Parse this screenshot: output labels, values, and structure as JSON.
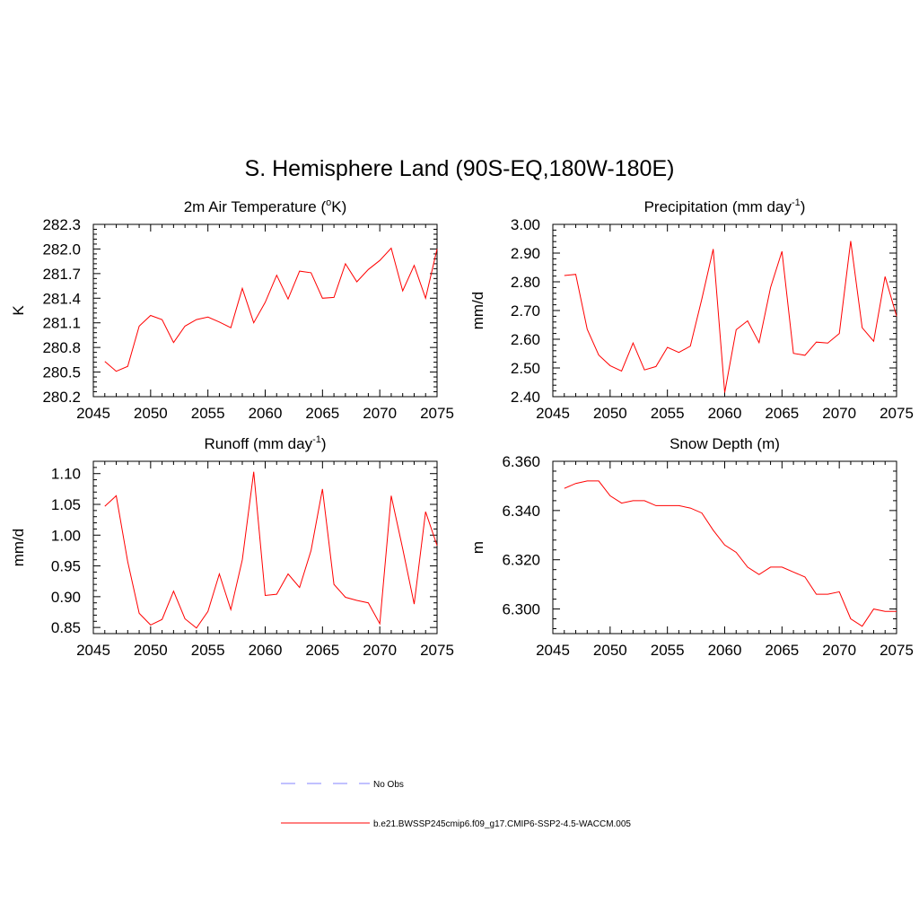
{
  "title": "S. Hemisphere Land (90S-EQ,180W-180E)",
  "line_color": "#ff0000",
  "obs_color": "#9c9cff",
  "legend": [
    {
      "label": "No Obs",
      "style": "dashed",
      "color": "#9c9cff"
    },
    {
      "label": "b.e21.BWSSP245cmip6.f09_g17.CMIP6-SSP2-4.5-WACCM.005",
      "style": "solid",
      "color": "#ff0000"
    }
  ],
  "chart_data": [
    {
      "type": "line",
      "title": "2m Air Temperature (",
      "title_sup": "o",
      "title_after": "K)",
      "ylabel": "K",
      "xlabel": "",
      "xlim": [
        2045,
        2075
      ],
      "ylim": [
        280.2,
        282.3
      ],
      "xticks": [
        "2045",
        "2050",
        "2055",
        "2060",
        "2065",
        "2070",
        "2075"
      ],
      "yticks": [
        "280.2",
        "280.5",
        "280.8",
        "281.1",
        "281.4",
        "281.7",
        "282.0",
        "282.3"
      ],
      "x": [
        2046,
        2047,
        2048,
        2049,
        2050,
        2051,
        2052,
        2053,
        2054,
        2055,
        2056,
        2057,
        2058,
        2059,
        2060,
        2061,
        2062,
        2063,
        2064,
        2065,
        2066,
        2067,
        2068,
        2069,
        2070,
        2071,
        2072,
        2073,
        2074,
        2075
      ],
      "values": [
        280.63,
        280.51,
        280.57,
        281.06,
        281.19,
        281.14,
        280.86,
        281.06,
        281.14,
        281.17,
        281.11,
        281.04,
        281.52,
        281.1,
        281.35,
        281.68,
        281.39,
        281.73,
        281.71,
        281.4,
        281.41,
        281.82,
        281.6,
        281.75,
        281.86,
        282.01,
        281.49,
        281.8,
        281.4,
        282.0
      ]
    },
    {
      "type": "line",
      "title": "Precipitation (mm day",
      "title_sup": "-1",
      "title_after": ")",
      "ylabel": "mm/d",
      "xlabel": "",
      "xlim": [
        2045,
        2075
      ],
      "ylim": [
        2.4,
        3.0
      ],
      "xticks": [
        "2045",
        "2050",
        "2055",
        "2060",
        "2065",
        "2070",
        "2075"
      ],
      "yticks": [
        "2.40",
        "2.50",
        "2.60",
        "2.70",
        "2.80",
        "2.90",
        "3.00"
      ],
      "x": [
        2046,
        2047,
        2048,
        2049,
        2050,
        2051,
        2052,
        2053,
        2054,
        2055,
        2056,
        2057,
        2058,
        2059,
        2060,
        2061,
        2062,
        2063,
        2064,
        2065,
        2066,
        2067,
        2068,
        2069,
        2070,
        2071,
        2072,
        2073,
        2074,
        2075
      ],
      "values": [
        2.822,
        2.826,
        2.635,
        2.545,
        2.508,
        2.489,
        2.587,
        2.493,
        2.505,
        2.572,
        2.554,
        2.576,
        2.74,
        2.914,
        2.414,
        2.633,
        2.664,
        2.588,
        2.78,
        2.906,
        2.551,
        2.544,
        2.59,
        2.587,
        2.62,
        2.942,
        2.64,
        2.593,
        2.818,
        2.68
      ]
    },
    {
      "type": "line",
      "title": "Runoff (mm day",
      "title_sup": "-1",
      "title_after": ")",
      "ylabel": "mm/d",
      "xlabel": "",
      "xlim": [
        2045,
        2075
      ],
      "ylim": [
        0.84,
        1.12
      ],
      "xticks": [
        "2045",
        "2050",
        "2055",
        "2060",
        "2065",
        "2070",
        "2075"
      ],
      "yticks": [
        "0.85",
        "0.90",
        "0.95",
        "1.00",
        "1.05",
        "1.10"
      ],
      "ytick_values": [
        0.85,
        0.9,
        0.95,
        1.0,
        1.05,
        1.1
      ],
      "x": [
        2046,
        2047,
        2048,
        2049,
        2050,
        2051,
        2052,
        2053,
        2054,
        2055,
        2056,
        2057,
        2058,
        2059,
        2060,
        2061,
        2062,
        2063,
        2064,
        2065,
        2066,
        2067,
        2068,
        2069,
        2070,
        2071,
        2072,
        2073,
        2074,
        2075
      ],
      "values": [
        1.047,
        1.064,
        0.957,
        0.873,
        0.854,
        0.863,
        0.909,
        0.864,
        0.849,
        0.876,
        0.937,
        0.879,
        0.96,
        1.103,
        0.902,
        0.904,
        0.937,
        0.915,
        0.975,
        1.075,
        0.92,
        0.899,
        0.894,
        0.89,
        0.856,
        1.064,
        0.978,
        0.888,
        1.038,
        0.983
      ]
    },
    {
      "type": "line",
      "title": "Snow Depth (m)",
      "title_sup": "",
      "title_after": "",
      "ylabel": "m",
      "xlabel": "",
      "xlim": [
        2045,
        2075
      ],
      "ylim": [
        6.29,
        6.36
      ],
      "xticks": [
        "2045",
        "2050",
        "2055",
        "2060",
        "2065",
        "2070",
        "2075"
      ],
      "yticks": [
        "6.300",
        "6.320",
        "6.340",
        "6.360"
      ],
      "ytick_values": [
        6.3,
        6.32,
        6.34,
        6.36
      ],
      "x": [
        2046,
        2047,
        2048,
        2049,
        2050,
        2051,
        2052,
        2053,
        2054,
        2055,
        2056,
        2057,
        2058,
        2059,
        2060,
        2061,
        2062,
        2063,
        2064,
        2065,
        2066,
        2067,
        2068,
        2069,
        2070,
        2071,
        2072,
        2073,
        2074,
        2075
      ],
      "values": [
        6.349,
        6.351,
        6.352,
        6.352,
        6.346,
        6.343,
        6.344,
        6.344,
        6.342,
        6.342,
        6.342,
        6.341,
        6.339,
        6.332,
        6.326,
        6.323,
        6.317,
        6.314,
        6.317,
        6.317,
        6.315,
        6.313,
        6.306,
        6.306,
        6.307,
        6.296,
        6.293,
        6.3,
        6.299,
        6.299
      ]
    }
  ]
}
